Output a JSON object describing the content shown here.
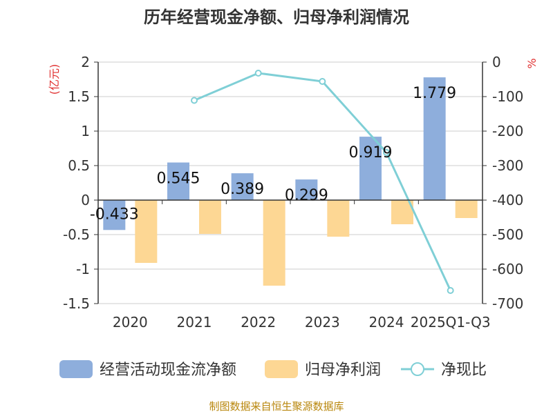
{
  "chart_data": {
    "type": "bar",
    "title": "历年经营现金净额、归母净利润情况",
    "categories": [
      "2020",
      "2021",
      "2022",
      "2023",
      "2024",
      "2025Q1-Q3"
    ],
    "series": [
      {
        "name": "经营活动现金流净额",
        "type": "bar",
        "axis": "left",
        "values": [
          -0.433,
          0.545,
          0.389,
          0.299,
          0.919,
          1.779
        ],
        "color": "#8eaedc"
      },
      {
        "name": "归母净利润",
        "type": "bar",
        "axis": "left",
        "values": [
          -0.91,
          -0.49,
          -1.24,
          -0.53,
          -0.35,
          -0.26
        ],
        "color": "#fdd794"
      },
      {
        "name": "净现比",
        "type": "line",
        "axis": "right",
        "values": [
          null,
          -111,
          -32,
          -56,
          -262,
          -662
        ],
        "color": "#7fcfd6"
      }
    ],
    "data_labels": [
      "-0.433",
      "0.545",
      "0.389",
      "0.299",
      "0.919",
      "1.779"
    ],
    "ylabel_left": "(亿元)",
    "ylabel_right": "%",
    "ylim_left": [
      -1.5,
      2
    ],
    "ylim_right": [
      -700,
      0
    ],
    "yticks_left": [
      "2",
      "1.5",
      "1",
      "0.5",
      "0",
      "-0.5",
      "-1",
      "-1.5"
    ],
    "yticks_right": [
      "0",
      "-100",
      "-200",
      "-300",
      "-400",
      "-500",
      "-600",
      "-700"
    ],
    "grid": true,
    "legend_position": "bottom"
  },
  "footer": "制图数据来自恒生聚源数据库",
  "colors": {
    "label_red": "#e03030",
    "axis": "#333333",
    "grid": "#cccccc"
  }
}
